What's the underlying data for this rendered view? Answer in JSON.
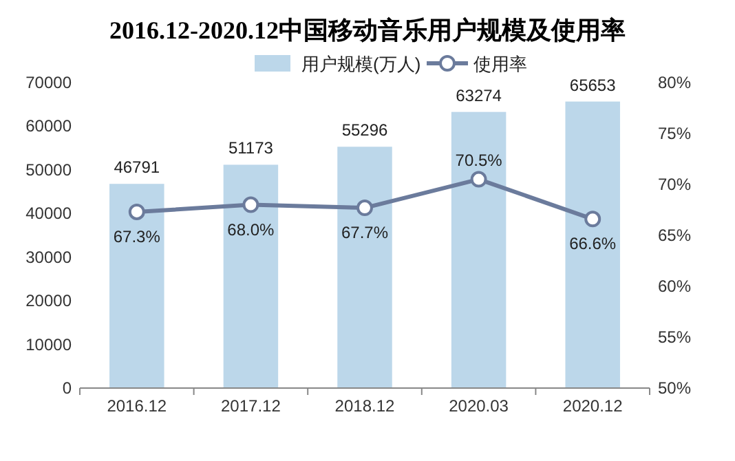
{
  "chart_data": {
    "type": "bar",
    "title": "2016.12-2020.12中国移动音乐用户规模及使用率",
    "categories": [
      "2016.12",
      "2017.12",
      "2018.12",
      "2020.03",
      "2020.12"
    ],
    "series": [
      {
        "name": "用户规模(万人)",
        "color": "#bcd7ea",
        "values": [
          46791,
          51173,
          55296,
          63274,
          65653
        ],
        "value_labels": [
          "46791",
          "51173",
          "55296",
          "63274",
          "65653"
        ]
      },
      {
        "name": "使用率",
        "type": "line",
        "axis": "y2",
        "color": "#6b7b9c",
        "marker": "circle",
        "values": [
          67.3,
          68.0,
          67.7,
          70.5,
          66.6
        ],
        "value_labels": [
          "67.3%",
          "68.0%",
          "67.7%",
          "70.5%",
          "66.6%"
        ]
      }
    ],
    "ylim": [
      0,
      70000
    ],
    "yticks": [
      0,
      10000,
      20000,
      30000,
      40000,
      50000,
      60000,
      70000
    ],
    "y2lim": [
      50,
      80
    ],
    "y2ticks": [
      {
        "value": 50,
        "label": "50%"
      },
      {
        "value": 55,
        "label": "55%"
      },
      {
        "value": 60,
        "label": "60%"
      },
      {
        "value": 65,
        "label": "65%"
      },
      {
        "value": 70,
        "label": "70%"
      },
      {
        "value": 75,
        "label": "75%"
      },
      {
        "value": 80,
        "label": "80%"
      }
    ],
    "legend": "top",
    "grid": false
  }
}
